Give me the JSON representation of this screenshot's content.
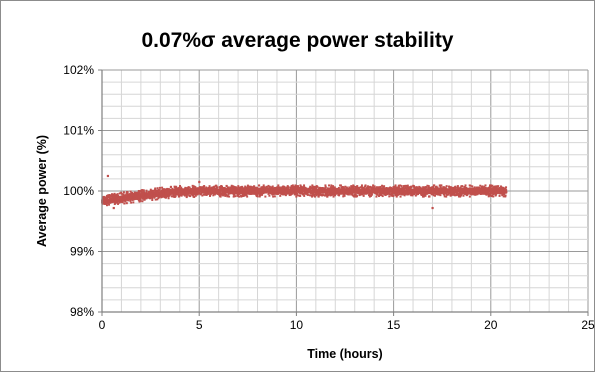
{
  "chart_data": {
    "type": "scatter",
    "title": "0.07%σ average power stability",
    "xlabel": "Time (hours)",
    "ylabel": "Average power (%)",
    "xlim": [
      0,
      25
    ],
    "ylim": [
      98,
      102
    ],
    "x_ticks": [
      0,
      5,
      10,
      15,
      20,
      25
    ],
    "x_tick_labels": [
      "0",
      "5",
      "10",
      "15",
      "20",
      "25"
    ],
    "y_ticks": [
      98,
      99,
      100,
      101,
      102
    ],
    "y_tick_labels": [
      "98%",
      "99%",
      "100%",
      "101%",
      "102%"
    ],
    "grid": true,
    "legend": "none",
    "marker_color": "#c0504d",
    "series": [
      {
        "x_range": [
          0,
          20.8
        ],
        "mean_profile": [
          {
            "x": 0,
            "y": 99.85
          },
          {
            "x": 1,
            "y": 99.88
          },
          {
            "x": 2,
            "y": 99.92
          },
          {
            "x": 3,
            "y": 99.96
          },
          {
            "x": 4,
            "y": 99.99
          },
          {
            "x": 6,
            "y": 100.0
          },
          {
            "x": 20.8,
            "y": 100.0
          }
        ],
        "sigma_percent": 0.07,
        "outliers": [
          {
            "x": 0.3,
            "y": 100.25
          },
          {
            "x": 0.6,
            "y": 99.72
          },
          {
            "x": 17.0,
            "y": 99.72
          },
          {
            "x": 5.0,
            "y": 100.15
          }
        ]
      }
    ]
  }
}
